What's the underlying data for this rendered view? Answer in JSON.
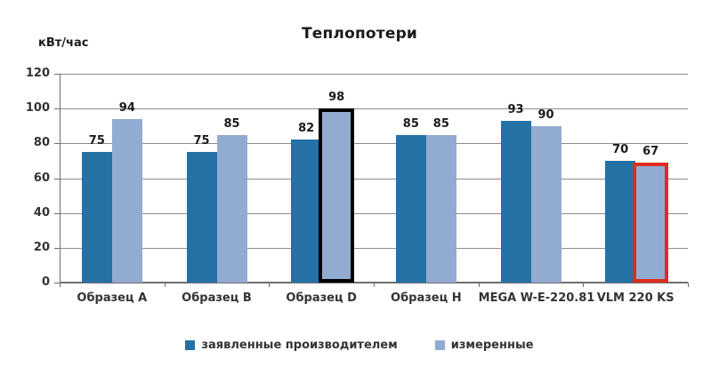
{
  "chart_data": {
    "type": "bar",
    "title": "Теплопотери",
    "ylabel": "кВт/час",
    "xlabel": "",
    "categories": [
      "Образец A",
      "Образец B",
      "Образец D",
      "Образец H",
      "MEGA W-E-220.81",
      "VLM 220 KS"
    ],
    "series": [
      {
        "name": "заявленные производителем",
        "color": "#2471A6",
        "values": [
          75,
          75,
          82,
          85,
          93,
          70
        ]
      },
      {
        "name": "измеренные",
        "color": "#92ABD1",
        "values": [
          94,
          85,
          98,
          85,
          90,
          67
        ]
      }
    ],
    "ylim": [
      0,
      120
    ],
    "ytick_step": 20,
    "grid": true,
    "legend_position": "bottom",
    "highlights": [
      {
        "category_index": 2,
        "series_index": 1,
        "outline_color": "#000000"
      },
      {
        "category_index": 5,
        "series_index": 1,
        "outline_color": "#E02B20"
      }
    ]
  },
  "style_colors": {
    "grid": "#8c8c8c",
    "axis": "#6e6e6e",
    "text": "#333333"
  }
}
